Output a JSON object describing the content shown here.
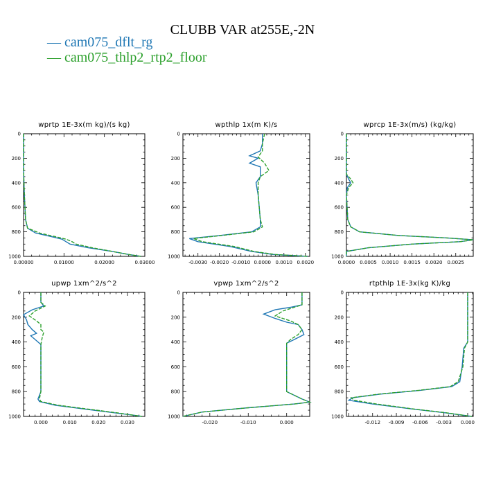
{
  "title": "CLUBB VAR at255E,-2N",
  "legend": [
    {
      "label": "cam075_dflt_rg",
      "color": "#1f77b4",
      "dash": "solid"
    },
    {
      "label": "cam075_thlp2_rtp2_floor",
      "color": "#2ca02c",
      "dash": "dashed"
    }
  ],
  "chart_data": [
    {
      "type": "line",
      "title": "wprtp  1E-3x(m kg)/(s kg)",
      "xlim": [
        0,
        0.03
      ],
      "ylim": [
        1000,
        0
      ],
      "xticks": [
        0,
        0.01,
        0.02,
        0.03
      ],
      "xtick_labels": [
        "0.00000",
        "0.01000",
        "0.02000",
        "0.03000"
      ],
      "yticks": [
        0,
        200,
        400,
        600,
        800,
        1000
      ],
      "series": [
        {
          "name": "cam075_dflt_rg",
          "points": [
            [
              0,
              0
            ],
            [
              0,
              300
            ],
            [
              0.0002,
              500
            ],
            [
              0.0005,
              700
            ],
            [
              0.001,
              770
            ],
            [
              0.003,
              810
            ],
            [
              0.007,
              840
            ],
            [
              0.0095,
              860
            ],
            [
              0.0105,
              880
            ],
            [
              0.0115,
              900
            ],
            [
              0.016,
              930
            ],
            [
              0.022,
              960
            ],
            [
              0.026,
              985
            ],
            [
              0.029,
              1000
            ]
          ]
        },
        {
          "name": "cam075_thlp2_rtp2_floor",
          "points": [
            [
              0,
              0
            ],
            [
              0,
              300
            ],
            [
              0.0002,
              500
            ],
            [
              0.0005,
              700
            ],
            [
              0.001,
              770
            ],
            [
              0.004,
              810
            ],
            [
              0.008,
              840
            ],
            [
              0.0105,
              860
            ],
            [
              0.012,
              880
            ],
            [
              0.013,
              900
            ],
            [
              0.017,
              930
            ],
            [
              0.022,
              960
            ],
            [
              0.026,
              985
            ],
            [
              0.029,
              1000
            ]
          ]
        }
      ]
    },
    {
      "type": "line",
      "title": "wpthlp  1x(m K)/s",
      "xlim": [
        -0.0037,
        0.0022
      ],
      "ylim": [
        1000,
        0
      ],
      "xticks": [
        -0.003,
        -0.002,
        -0.001,
        0,
        0.001,
        0.002
      ],
      "xtick_labels": [
        "-0.0030",
        "-0.0020",
        "-0.0010",
        "0.0000",
        "0.0010",
        "0.0020"
      ],
      "yticks": [
        0,
        200,
        400,
        600,
        800,
        1000
      ],
      "series": [
        {
          "name": "cam075_dflt_rg",
          "points": [
            [
              0,
              0
            ],
            [
              0,
              80
            ],
            [
              -0.0001,
              140
            ],
            [
              -0.0006,
              180
            ],
            [
              -0.0002,
              200
            ],
            [
              -0.0006,
              240
            ],
            [
              -0.0001,
              270
            ],
            [
              -0.0001,
              350
            ],
            [
              -0.0003,
              400
            ],
            [
              -0.0002,
              500
            ],
            [
              -0.0001,
              700
            ],
            [
              -0.0001,
              760
            ],
            [
              -0.0005,
              800
            ],
            [
              -0.002,
              830
            ],
            [
              -0.0034,
              855
            ],
            [
              -0.003,
              880
            ],
            [
              -0.0015,
              920
            ],
            [
              -0.0005,
              960
            ],
            [
              0.0005,
              985
            ],
            [
              0.0021,
              1000
            ]
          ]
        },
        {
          "name": "cam075_thlp2_rtp2_floor",
          "points": [
            [
              0.0001,
              0
            ],
            [
              0,
              80
            ],
            [
              0,
              140
            ],
            [
              -0.0002,
              190
            ],
            [
              0.0001,
              240
            ],
            [
              0.0003,
              300
            ],
            [
              -0.0001,
              350
            ],
            [
              -0.0002,
              400
            ],
            [
              -0.0002,
              500
            ],
            [
              -0.0001,
              700
            ],
            [
              0,
              760
            ],
            [
              -0.0004,
              800
            ],
            [
              -0.0019,
              830
            ],
            [
              -0.0032,
              855
            ],
            [
              -0.0028,
              880
            ],
            [
              -0.0013,
              920
            ],
            [
              -0.0004,
              960
            ],
            [
              0.0006,
              985
            ],
            [
              0.0021,
              1000
            ]
          ]
        }
      ]
    },
    {
      "type": "line",
      "title": "wprcp  1E-3x(m/s) (kg/kg)",
      "xlim": [
        0,
        0.0029
      ],
      "ylim": [
        1000,
        0
      ],
      "xticks": [
        0,
        0.0005,
        0.001,
        0.0015,
        0.002,
        0.0025
      ],
      "xtick_labels": [
        "0.0000",
        "0.0005",
        "0.0010",
        "0.0015",
        "0.0020",
        "0.0025"
      ],
      "yticks": [
        0,
        200,
        400,
        600,
        800,
        1000
      ],
      "series": [
        {
          "name": "cam075_dflt_rg",
          "points": [
            [
              0,
              0
            ],
            [
              0,
              330
            ],
            [
              5e-05,
              370
            ],
            [
              0.0001,
              400
            ],
            [
              2e-05,
              440
            ],
            [
              0,
              500
            ],
            [
              3e-05,
              700
            ],
            [
              0.0001,
              760
            ],
            [
              0.0003,
              800
            ],
            [
              0.0012,
              830
            ],
            [
              0.0023,
              850
            ],
            [
              0.0029,
              865
            ],
            [
              0.0026,
              880
            ],
            [
              0.0015,
              900
            ],
            [
              0.0005,
              930
            ],
            [
              0,
              960
            ],
            [
              0,
              1000
            ]
          ]
        },
        {
          "name": "cam075_thlp2_rtp2_floor",
          "points": [
            [
              0,
              0
            ],
            [
              0,
              330
            ],
            [
              0.0001,
              370
            ],
            [
              0.00015,
              400
            ],
            [
              5e-05,
              440
            ],
            [
              0,
              500
            ],
            [
              3e-05,
              700
            ],
            [
              0.0001,
              760
            ],
            [
              0.0003,
              800
            ],
            [
              0.0012,
              830
            ],
            [
              0.0023,
              850
            ],
            [
              0.0029,
              865
            ],
            [
              0.0026,
              880
            ],
            [
              0.0015,
              900
            ],
            [
              0.0005,
              930
            ],
            [
              0,
              960
            ],
            [
              0,
              1000
            ]
          ]
        }
      ]
    },
    {
      "type": "line",
      "title": "upwp  1xm^2/s^2",
      "xlim": [
        -0.006,
        0.036
      ],
      "ylim": [
        1000,
        0
      ],
      "xticks": [
        0,
        0.01,
        0.02,
        0.03
      ],
      "xtick_labels": [
        "0.000",
        "0.010",
        "0.020",
        "0.030"
      ],
      "yticks": [
        0,
        200,
        400,
        600,
        800,
        1000
      ],
      "series": [
        {
          "name": "cam075_dflt_rg",
          "points": [
            [
              0,
              0
            ],
            [
              0,
              80
            ],
            [
              0.001,
              110
            ],
            [
              -0.003,
              140
            ],
            [
              -0.006,
              180
            ],
            [
              -0.005,
              220
            ],
            [
              -0.0045,
              260
            ],
            [
              -0.003,
              300
            ],
            [
              -0.0015,
              330
            ],
            [
              -0.0035,
              350
            ],
            [
              -0.002,
              380
            ],
            [
              0,
              420
            ],
            [
              0,
              600
            ],
            [
              0,
              800
            ],
            [
              -0.001,
              860
            ],
            [
              -0.0005,
              880
            ],
            [
              0.005,
              910
            ],
            [
              0.015,
              940
            ],
            [
              0.025,
              970
            ],
            [
              0.032,
              990
            ],
            [
              0.035,
              1000
            ]
          ]
        },
        {
          "name": "cam075_thlp2_rtp2_floor",
          "points": [
            [
              0,
              0
            ],
            [
              0,
              80
            ],
            [
              0.0015,
              110
            ],
            [
              -0.002,
              150
            ],
            [
              -0.004,
              190
            ],
            [
              -0.0015,
              230
            ],
            [
              0,
              260
            ],
            [
              0,
              300
            ],
            [
              0.001,
              320
            ],
            [
              0.0005,
              360
            ],
            [
              0,
              420
            ],
            [
              0,
              600
            ],
            [
              0,
              800
            ],
            [
              -0.0005,
              860
            ],
            [
              0,
              880
            ],
            [
              0.006,
              910
            ],
            [
              0.016,
              940
            ],
            [
              0.026,
              970
            ],
            [
              0.032,
              990
            ],
            [
              0.035,
              1000
            ]
          ]
        }
      ]
    },
    {
      "type": "line",
      "title": "vpwp  1xm^2/s^2",
      "xlim": [
        -0.027,
        0.006
      ],
      "ylim": [
        1000,
        0
      ],
      "xticks": [
        -0.02,
        -0.01,
        0
      ],
      "xtick_labels": [
        "-0.020",
        "-0.010",
        "0.000"
      ],
      "yticks": [
        0,
        200,
        400,
        600,
        800,
        1000
      ],
      "series": [
        {
          "name": "cam075_dflt_rg",
          "points": [
            [
              0.004,
              0
            ],
            [
              0.004,
              100
            ],
            [
              0.001,
              120
            ],
            [
              -0.003,
              140
            ],
            [
              -0.006,
              175
            ],
            [
              -0.003,
              210
            ],
            [
              0,
              240
            ],
            [
              0.003,
              260
            ],
            [
              0.004,
              300
            ],
            [
              0.0045,
              340
            ],
            [
              0.002,
              380
            ],
            [
              0,
              410
            ],
            [
              0,
              600
            ],
            [
              0,
              800
            ],
            [
              0.004,
              860
            ],
            [
              0.006,
              885
            ],
            [
              0.002,
              900
            ],
            [
              -0.01,
              930
            ],
            [
              -0.022,
              965
            ],
            [
              -0.027,
              1000
            ]
          ]
        },
        {
          "name": "cam075_thlp2_rtp2_floor",
          "points": [
            [
              0.004,
              0
            ],
            [
              0.004,
              100
            ],
            [
              0.002,
              120
            ],
            [
              -0.001,
              150
            ],
            [
              -0.003,
              190
            ],
            [
              0.001,
              230
            ],
            [
              0.003,
              260
            ],
            [
              0.004,
              300
            ],
            [
              0.003,
              340
            ],
            [
              0.001,
              380
            ],
            [
              0,
              410
            ],
            [
              0,
              600
            ],
            [
              0,
              800
            ],
            [
              0.004,
              860
            ],
            [
              0.006,
              885
            ],
            [
              0.002,
              900
            ],
            [
              -0.01,
              930
            ],
            [
              -0.022,
              965
            ],
            [
              -0.027,
              1000
            ]
          ]
        }
      ]
    },
    {
      "type": "line",
      "title": "rtpthlp  1E-3x(kg K)/kg",
      "xlim": [
        -0.0153,
        0.0007
      ],
      "ylim": [
        1000,
        0
      ],
      "xticks": [
        -0.012,
        -0.009,
        -0.006,
        -0.003,
        0
      ],
      "xtick_labels": [
        "-0.012",
        "-0.009",
        "-0.006",
        "-0.003",
        "0.000"
      ],
      "yticks": [
        0,
        200,
        400,
        600,
        800,
        1000
      ],
      "series": [
        {
          "name": "cam075_dflt_rg",
          "points": [
            [
              0,
              0
            ],
            [
              0,
              400
            ],
            [
              -0.0005,
              450
            ],
            [
              -0.0007,
              600
            ],
            [
              -0.001,
              720
            ],
            [
              -0.002,
              760
            ],
            [
              -0.006,
              790
            ],
            [
              -0.011,
              820
            ],
            [
              -0.0145,
              850
            ],
            [
              -0.015,
              870
            ],
            [
              -0.012,
              900
            ],
            [
              -0.007,
              940
            ],
            [
              -0.003,
              970
            ],
            [
              0.0005,
              1000
            ]
          ]
        },
        {
          "name": "cam075_thlp2_rtp2_floor",
          "points": [
            [
              0,
              0
            ],
            [
              0,
              400
            ],
            [
              -0.0004,
              450
            ],
            [
              -0.0006,
              600
            ],
            [
              -0.0012,
              720
            ],
            [
              -0.0022,
              760
            ],
            [
              -0.0062,
              790
            ],
            [
              -0.0112,
              820
            ],
            [
              -0.0147,
              850
            ],
            [
              -0.0143,
              870
            ],
            [
              -0.0115,
              900
            ],
            [
              -0.0068,
              940
            ],
            [
              -0.0028,
              970
            ],
            [
              0.0005,
              1000
            ]
          ]
        }
      ]
    }
  ]
}
